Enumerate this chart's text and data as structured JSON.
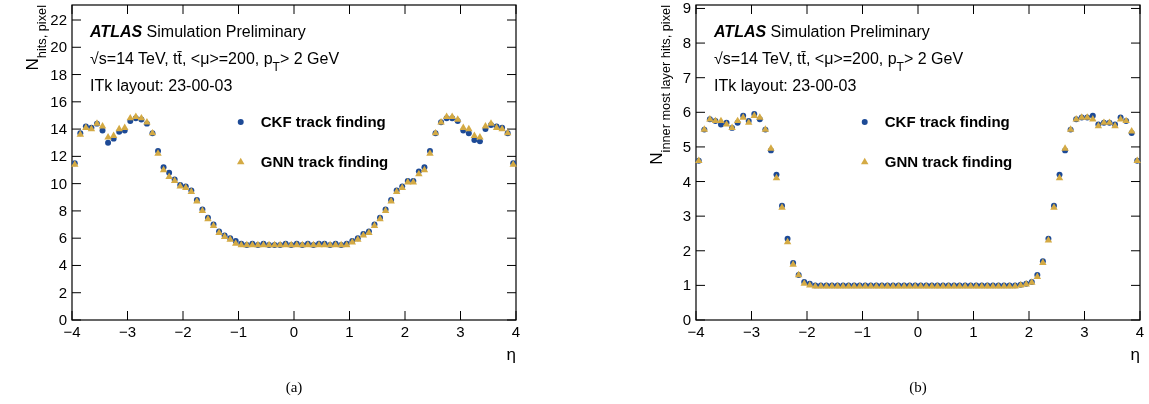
{
  "chart_data": [
    {
      "type": "scatter",
      "xlabel": "η",
      "ylabel": "N$_{hits, pixel}$",
      "xlim": [
        -4,
        4
      ],
      "ylim": [
        0,
        23.1
      ],
      "xticks": [
        {
          "value": -4,
          "label": "−4"
        },
        {
          "value": -3,
          "label": "−3"
        },
        {
          "value": -2,
          "label": "−2"
        },
        {
          "value": -1,
          "label": "−1"
        },
        0,
        1,
        2,
        3,
        4
      ],
      "yticks": [
        0,
        2,
        4,
        6,
        8,
        10,
        12,
        14,
        16,
        18,
        20,
        22
      ],
      "legend": "top",
      "grid": false,
      "annotations": [
        "ATLAS Simulation Preliminary",
        "√s=14 TeV, tt̄, <μ>=200, p$_{T}$> 2 GeV",
        "ITk layout: 23-00-03",
        "(a)"
      ],
      "x": [
        -3.95,
        -3.85,
        -3.75,
        -3.65,
        -3.55,
        -3.45,
        -3.35,
        -3.25,
        -3.15,
        -3.05,
        -2.95,
        -2.85,
        -2.75,
        -2.65,
        -2.55,
        -2.45,
        -2.35,
        -2.25,
        -2.15,
        -2.05,
        -1.95,
        -1.85,
        -1.75,
        -1.65,
        -1.55,
        -1.45,
        -1.35,
        -1.25,
        -1.15,
        -1.05,
        -0.95,
        -0.85,
        -0.75,
        -0.65,
        -0.55,
        -0.45,
        -0.35,
        -0.25,
        -0.15,
        -0.05,
        0.05,
        0.15,
        0.25,
        0.35,
        0.45,
        0.55,
        0.65,
        0.75,
        0.85,
        0.95,
        1.05,
        1.15,
        1.25,
        1.35,
        1.45,
        1.55,
        1.65,
        1.75,
        1.85,
        1.95,
        2.05,
        2.15,
        2.25,
        2.35,
        2.45,
        2.55,
        2.65,
        2.75,
        2.85,
        2.95,
        3.05,
        3.15,
        3.25,
        3.35,
        3.45,
        3.55,
        3.65,
        3.75,
        3.85,
        3.95
      ],
      "series": [
        {
          "name": "CKF track finding",
          "color": "#1d4a96",
          "marker": "circle",
          "values": [
            11.5,
            13.7,
            14.2,
            14.1,
            14.4,
            13.9,
            13.0,
            13.3,
            13.8,
            13.9,
            14.6,
            14.8,
            14.7,
            14.4,
            13.7,
            12.4,
            11.2,
            10.8,
            10.3,
            9.9,
            9.8,
            9.5,
            8.8,
            8.1,
            7.5,
            7.0,
            6.5,
            6.2,
            6.0,
            5.8,
            5.6,
            5.5,
            5.6,
            5.5,
            5.6,
            5.5,
            5.5,
            5.5,
            5.6,
            5.5,
            5.6,
            5.5,
            5.6,
            5.5,
            5.6,
            5.6,
            5.5,
            5.6,
            5.5,
            5.6,
            5.8,
            6.0,
            6.3,
            6.5,
            7.0,
            7.5,
            8.1,
            8.8,
            9.5,
            9.8,
            10.2,
            10.2,
            10.9,
            11.2,
            12.4,
            13.7,
            14.5,
            14.8,
            14.8,
            14.6,
            13.9,
            13.7,
            13.2,
            13.1,
            14.0,
            14.3,
            14.2,
            14.1,
            13.7,
            11.5
          ]
        },
        {
          "name": "GNN track finding",
          "color": "#d4aa44",
          "marker": "triangle",
          "values": [
            11.4,
            13.6,
            14.1,
            14.0,
            14.4,
            14.2,
            13.4,
            13.5,
            14.0,
            14.1,
            14.8,
            14.9,
            14.8,
            14.5,
            13.7,
            12.2,
            11.0,
            10.5,
            10.2,
            9.8,
            9.7,
            9.4,
            8.7,
            8.0,
            7.4,
            6.9,
            6.4,
            6.1,
            5.9,
            5.6,
            5.5,
            5.5,
            5.5,
            5.5,
            5.5,
            5.5,
            5.5,
            5.5,
            5.5,
            5.5,
            5.5,
            5.5,
            5.5,
            5.5,
            5.5,
            5.5,
            5.5,
            5.5,
            5.5,
            5.5,
            5.7,
            5.9,
            6.2,
            6.4,
            6.9,
            7.4,
            8.0,
            8.7,
            9.4,
            9.7,
            10.1,
            10.1,
            10.7,
            11.0,
            12.2,
            13.7,
            14.5,
            14.9,
            14.9,
            14.7,
            14.1,
            14.0,
            13.5,
            13.4,
            14.2,
            14.4,
            14.1,
            14.0,
            13.7,
            11.4
          ]
        }
      ]
    },
    {
      "type": "scatter",
      "xlabel": "η",
      "ylabel": "N$_{inner most layer hits, pixel}$",
      "xlim": [
        -4,
        4
      ],
      "ylim": [
        0,
        9.1
      ],
      "xticks": [
        {
          "value": -4,
          "label": "−4"
        },
        {
          "value": -3,
          "label": "−3"
        },
        {
          "value": -2,
          "label": "−2"
        },
        {
          "value": -1,
          "label": "−1"
        },
        0,
        1,
        2,
        3,
        4
      ],
      "yticks": [
        0,
        1,
        2,
        3,
        4,
        5,
        6,
        7,
        8,
        9
      ],
      "legend": "top",
      "grid": false,
      "annotations": [
        "ATLAS Simulation Preliminary",
        "√s=14 TeV, tt̄, <μ>=200, p$_{T}$> 2 GeV",
        "ITk layout: 23-00-03",
        "(b)"
      ],
      "x": [
        -3.95,
        -3.85,
        -3.75,
        -3.65,
        -3.55,
        -3.45,
        -3.35,
        -3.25,
        -3.15,
        -3.05,
        -2.95,
        -2.85,
        -2.75,
        -2.65,
        -2.55,
        -2.45,
        -2.35,
        -2.25,
        -2.15,
        -2.05,
        -1.95,
        -1.85,
        -1.75,
        -1.65,
        -1.55,
        -1.45,
        -1.35,
        -1.25,
        -1.15,
        -1.05,
        -0.95,
        -0.85,
        -0.75,
        -0.65,
        -0.55,
        -0.45,
        -0.35,
        -0.25,
        -0.15,
        -0.05,
        0.05,
        0.15,
        0.25,
        0.35,
        0.45,
        0.55,
        0.65,
        0.75,
        0.85,
        0.95,
        1.05,
        1.15,
        1.25,
        1.35,
        1.45,
        1.55,
        1.65,
        1.75,
        1.85,
        1.95,
        2.05,
        2.15,
        2.25,
        2.35,
        2.45,
        2.55,
        2.65,
        2.75,
        2.85,
        2.95,
        3.05,
        3.15,
        3.25,
        3.35,
        3.45,
        3.55,
        3.65,
        3.75,
        3.85,
        3.95
      ],
      "series": [
        {
          "name": "CKF track finding",
          "color": "#1d4a96",
          "marker": "circle",
          "values": [
            4.6,
            5.5,
            5.8,
            5.75,
            5.65,
            5.7,
            5.55,
            5.7,
            5.9,
            5.75,
            5.95,
            5.8,
            5.5,
            4.9,
            4.2,
            3.3,
            2.35,
            1.65,
            1.3,
            1.1,
            1.05,
            1.0,
            1.0,
            1.0,
            1.0,
            1.0,
            1.0,
            1.0,
            1.0,
            1.0,
            1.0,
            1.0,
            1.0,
            1.0,
            1.0,
            1.0,
            1.0,
            1.0,
            1.0,
            1.0,
            1.0,
            1.0,
            1.0,
            1.0,
            1.0,
            1.0,
            1.0,
            1.0,
            1.0,
            1.0,
            1.0,
            1.0,
            1.0,
            1.0,
            1.0,
            1.0,
            1.0,
            1.0,
            1.02,
            1.05,
            1.1,
            1.3,
            1.7,
            2.35,
            3.3,
            4.2,
            4.9,
            5.5,
            5.8,
            5.85,
            5.85,
            5.9,
            5.65,
            5.7,
            5.7,
            5.65,
            5.85,
            5.75,
            5.4,
            4.6
          ]
        },
        {
          "name": "GNN track finding",
          "color": "#d4aa44",
          "marker": "triangle",
          "values": [
            4.6,
            5.5,
            5.8,
            5.75,
            5.75,
            5.65,
            5.55,
            5.75,
            5.85,
            5.7,
            5.9,
            5.85,
            5.5,
            4.95,
            4.1,
            3.25,
            2.25,
            1.6,
            1.3,
            1.05,
            1.0,
            0.97,
            0.97,
            0.97,
            0.97,
            0.97,
            0.97,
            0.97,
            0.97,
            0.97,
            0.97,
            0.97,
            0.97,
            0.97,
            0.97,
            0.97,
            0.97,
            0.97,
            0.97,
            0.97,
            0.97,
            0.97,
            0.97,
            0.97,
            0.97,
            0.97,
            0.97,
            0.97,
            0.97,
            0.97,
            0.97,
            0.97,
            0.97,
            0.97,
            0.97,
            0.97,
            0.97,
            0.97,
            1.0,
            1.03,
            1.08,
            1.25,
            1.65,
            2.3,
            3.25,
            4.1,
            4.95,
            5.5,
            5.8,
            5.85,
            5.85,
            5.8,
            5.6,
            5.7,
            5.7,
            5.6,
            5.8,
            5.75,
            5.45,
            4.6
          ]
        }
      ]
    }
  ]
}
